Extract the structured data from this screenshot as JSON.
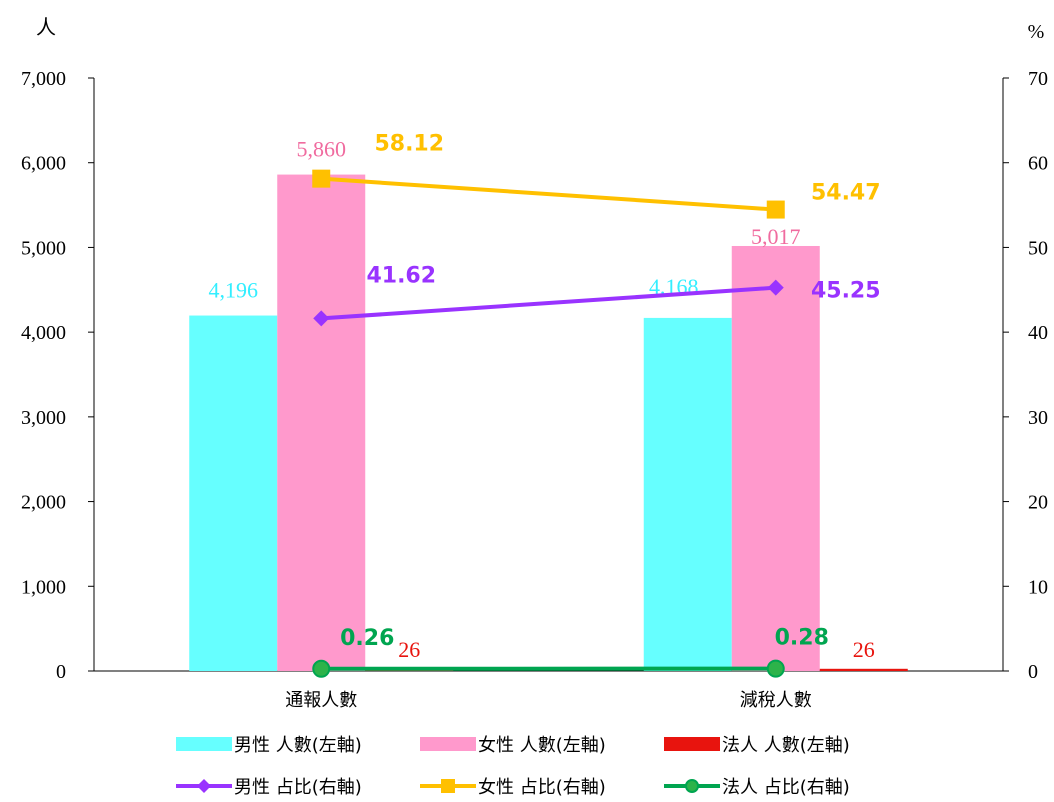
{
  "chart_data": {
    "type": "bar",
    "categories": [
      "通報人數",
      "減稅人數"
    ],
    "left_axis": {
      "unit_label": "人",
      "ylim": [
        0,
        7000
      ],
      "ticks": [
        0,
        1000,
        2000,
        3000,
        4000,
        5000,
        6000,
        7000
      ],
      "tick_labels": [
        "0",
        "1,000",
        "2,000",
        "3,000",
        "4,000",
        "5,000",
        "6,000",
        "7,000"
      ]
    },
    "right_axis": {
      "unit_label": "%",
      "ylim": [
        0,
        70
      ],
      "ticks": [
        0,
        10,
        20,
        30,
        40,
        50,
        60,
        70
      ],
      "tick_labels": [
        "0",
        "10",
        "20",
        "30",
        "40",
        "50",
        "60",
        "70"
      ]
    },
    "grid": false,
    "legend_position": "bottom",
    "bar_series": [
      {
        "name": "男性 人數(左軸)",
        "color": "#66FFFF",
        "label_color": "#33EEFF",
        "values": [
          4196,
          4168
        ],
        "labels": [
          "4,196",
          "4,168"
        ]
      },
      {
        "name": "女性 人數(左軸)",
        "color": "#FF99CC",
        "label_color": "#F06B9F",
        "values": [
          5860,
          5017
        ],
        "labels": [
          "5,860",
          "5,017"
        ]
      },
      {
        "name": "法人 人數(左軸)",
        "color": "#E8140E",
        "label_color": "#E8140E",
        "values": [
          26,
          26
        ],
        "labels": [
          "26",
          "26"
        ]
      }
    ],
    "line_series": [
      {
        "name": "男性 占比(右軸)",
        "color": "#9933FF",
        "marker": "diamond",
        "values": [
          41.62,
          45.25
        ],
        "labels": [
          "41.62",
          "45.25"
        ]
      },
      {
        "name": "女性 占比(右軸)",
        "color": "#FFC000",
        "marker": "square",
        "values": [
          58.12,
          54.47
        ],
        "labels": [
          "58.12",
          "54.47"
        ]
      },
      {
        "name": "法人 占比(右軸)",
        "color": "#00A550",
        "marker": "circle",
        "values": [
          0.26,
          0.28
        ],
        "labels": [
          "0.26",
          "0.28"
        ]
      }
    ]
  }
}
